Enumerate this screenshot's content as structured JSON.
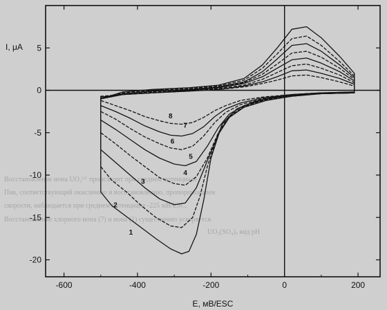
{
  "chart_data": {
    "type": "line",
    "xlabel": "E, мВ/ESC",
    "ylabel": "I, μA",
    "xlim": [
      -650,
      260
    ],
    "ylim": [
      -22,
      10
    ],
    "xticks": [
      -600,
      -400,
      -200,
      0,
      200
    ],
    "xtick_labels": [
      "-600",
      "-400",
      "-200",
      "0",
      "200"
    ],
    "yticks": [
      5,
      0,
      -5,
      -10,
      -15,
      -20
    ],
    "ytick_labels": [
      "5",
      "0",
      "-5",
      "-10",
      "-15",
      "-20"
    ],
    "grid": false,
    "series": [
      {
        "label": "1",
        "cathodic": [
          [
            -500,
            -12.0
          ],
          [
            -470,
            -13.6
          ],
          [
            -430,
            -14.9
          ],
          [
            -390,
            -16.2
          ],
          [
            -350,
            -17.5
          ],
          [
            -310,
            -18.7
          ],
          [
            -280,
            -19.3
          ],
          [
            -260,
            -19.0
          ],
          [
            -240,
            -17.0
          ],
          [
            -220,
            -13.0
          ],
          [
            -200,
            -8.0
          ],
          [
            -170,
            -4.0
          ],
          [
            -130,
            -2.2
          ],
          [
            -80,
            -1.3
          ],
          [
            -30,
            -0.8
          ],
          [
            20,
            -0.5
          ],
          [
            100,
            -0.3
          ],
          [
            190,
            -0.2
          ]
        ],
        "anodic": [
          [
            190,
            2.0
          ],
          [
            150,
            4.0
          ],
          [
            100,
            6.2
          ],
          [
            60,
            7.5
          ],
          [
            20,
            7.2
          ],
          [
            -20,
            5.0
          ],
          [
            -60,
            3.0
          ],
          [
            -110,
            1.4
          ],
          [
            -180,
            0.6
          ],
          [
            -260,
            0.3
          ],
          [
            -360,
            0.1
          ],
          [
            -440,
            -0.2
          ],
          [
            -500,
            -1.0
          ]
        ]
      },
      {
        "label": "2",
        "cathodic": [
          [
            -500,
            -9.0
          ],
          [
            -470,
            -10.6
          ],
          [
            -430,
            -12.0
          ],
          [
            -390,
            -13.6
          ],
          [
            -350,
            -15.0
          ],
          [
            -310,
            -16.0
          ],
          [
            -280,
            -16.2
          ],
          [
            -250,
            -15.0
          ],
          [
            -230,
            -12.5
          ],
          [
            -210,
            -9.0
          ],
          [
            -180,
            -5.0
          ],
          [
            -150,
            -3.0
          ],
          [
            -100,
            -1.7
          ],
          [
            -40,
            -1.0
          ],
          [
            20,
            -0.6
          ],
          [
            100,
            -0.4
          ],
          [
            190,
            -0.3
          ]
        ],
        "anodic": [
          [
            190,
            1.7
          ],
          [
            150,
            3.4
          ],
          [
            100,
            5.3
          ],
          [
            60,
            6.4
          ],
          [
            20,
            6.1
          ],
          [
            -20,
            4.3
          ],
          [
            -60,
            2.6
          ],
          [
            -110,
            1.2
          ],
          [
            -180,
            0.5
          ],
          [
            -260,
            0.2
          ],
          [
            -360,
            0.0
          ],
          [
            -440,
            -0.3
          ],
          [
            -500,
            -1.0
          ]
        ]
      },
      {
        "label": "3",
        "cathodic": [
          [
            -500,
            -7.0
          ],
          [
            -460,
            -8.5
          ],
          [
            -420,
            -10.0
          ],
          [
            -380,
            -11.5
          ],
          [
            -340,
            -12.8
          ],
          [
            -300,
            -13.5
          ],
          [
            -270,
            -13.3
          ],
          [
            -240,
            -11.5
          ],
          [
            -210,
            -8.3
          ],
          [
            -180,
            -5.2
          ],
          [
            -150,
            -3.2
          ],
          [
            -110,
            -2.0
          ],
          [
            -50,
            -1.2
          ],
          [
            20,
            -0.7
          ],
          [
            100,
            -0.4
          ],
          [
            190,
            -0.3
          ]
        ],
        "anodic": [
          [
            190,
            1.5
          ],
          [
            150,
            3.0
          ],
          [
            100,
            4.6
          ],
          [
            60,
            5.5
          ],
          [
            20,
            5.3
          ],
          [
            -20,
            3.7
          ],
          [
            -60,
            2.2
          ],
          [
            -110,
            1.0
          ],
          [
            -180,
            0.4
          ],
          [
            -260,
            0.1
          ],
          [
            -360,
            -0.1
          ],
          [
            -440,
            -0.4
          ],
          [
            -500,
            -1.0
          ]
        ]
      },
      {
        "label": "4",
        "cathodic": [
          [
            -500,
            -5.0
          ],
          [
            -460,
            -6.3
          ],
          [
            -420,
            -7.7
          ],
          [
            -380,
            -9.0
          ],
          [
            -340,
            -10.3
          ],
          [
            -300,
            -11.0
          ],
          [
            -270,
            -11.2
          ],
          [
            -240,
            -10.2
          ],
          [
            -210,
            -8.0
          ],
          [
            -180,
            -5.0
          ],
          [
            -150,
            -3.1
          ],
          [
            -110,
            -1.9
          ],
          [
            -50,
            -1.1
          ],
          [
            20,
            -0.7
          ],
          [
            100,
            -0.4
          ],
          [
            190,
            -0.3
          ]
        ],
        "anodic": [
          [
            190,
            1.3
          ],
          [
            150,
            2.6
          ],
          [
            100,
            3.9
          ],
          [
            60,
            4.6
          ],
          [
            20,
            4.4
          ],
          [
            -20,
            3.1
          ],
          [
            -60,
            1.9
          ],
          [
            -110,
            0.9
          ],
          [
            -180,
            0.3
          ],
          [
            -260,
            0.1
          ],
          [
            -360,
            -0.2
          ],
          [
            -440,
            -0.5
          ],
          [
            -500,
            -1.0
          ]
        ]
      },
      {
        "label": "5",
        "cathodic": [
          [
            -500,
            -3.5
          ],
          [
            -460,
            -4.6
          ],
          [
            -420,
            -5.8
          ],
          [
            -380,
            -7.0
          ],
          [
            -340,
            -8.0
          ],
          [
            -300,
            -8.7
          ],
          [
            -270,
            -8.9
          ],
          [
            -240,
            -8.4
          ],
          [
            -210,
            -6.6
          ],
          [
            -180,
            -4.4
          ],
          [
            -150,
            -2.8
          ],
          [
            -110,
            -1.8
          ],
          [
            -50,
            -1.0
          ],
          [
            20,
            -0.6
          ],
          [
            100,
            -0.4
          ],
          [
            190,
            -0.3
          ]
        ],
        "anodic": [
          [
            190,
            1.1
          ],
          [
            150,
            2.2
          ],
          [
            100,
            3.2
          ],
          [
            60,
            3.8
          ],
          [
            20,
            3.6
          ],
          [
            -20,
            2.6
          ],
          [
            -60,
            1.6
          ],
          [
            -110,
            0.8
          ],
          [
            -180,
            0.3
          ],
          [
            -260,
            0.0
          ],
          [
            -360,
            -0.3
          ],
          [
            -440,
            -0.5
          ],
          [
            -500,
            -1.0
          ]
        ]
      },
      {
        "label": "6",
        "cathodic": [
          [
            -500,
            -2.5
          ],
          [
            -460,
            -3.4
          ],
          [
            -420,
            -4.5
          ],
          [
            -380,
            -5.5
          ],
          [
            -340,
            -6.3
          ],
          [
            -310,
            -6.8
          ],
          [
            -280,
            -7.0
          ],
          [
            -250,
            -6.6
          ],
          [
            -220,
            -5.4
          ],
          [
            -190,
            -3.8
          ],
          [
            -160,
            -2.6
          ],
          [
            -120,
            -1.7
          ],
          [
            -60,
            -1.0
          ],
          [
            20,
            -0.6
          ],
          [
            100,
            -0.4
          ],
          [
            190,
            -0.3
          ]
        ],
        "anodic": [
          [
            190,
            0.9
          ],
          [
            150,
            1.8
          ],
          [
            100,
            2.6
          ],
          [
            60,
            3.1
          ],
          [
            20,
            2.9
          ],
          [
            -20,
            2.1
          ],
          [
            -60,
            1.3
          ],
          [
            -110,
            0.6
          ],
          [
            -180,
            0.2
          ],
          [
            -260,
            0.0
          ],
          [
            -360,
            -0.3
          ],
          [
            -440,
            -0.5
          ],
          [
            -500,
            -0.9
          ]
        ]
      },
      {
        "label": "7",
        "cathodic": [
          [
            -500,
            -1.8
          ],
          [
            -460,
            -2.5
          ],
          [
            -420,
            -3.3
          ],
          [
            -380,
            -4.2
          ],
          [
            -340,
            -4.9
          ],
          [
            -310,
            -5.3
          ],
          [
            -280,
            -5.4
          ],
          [
            -250,
            -5.1
          ],
          [
            -220,
            -4.3
          ],
          [
            -190,
            -3.1
          ],
          [
            -160,
            -2.2
          ],
          [
            -120,
            -1.5
          ],
          [
            -60,
            -0.9
          ],
          [
            20,
            -0.5
          ],
          [
            100,
            -0.3
          ],
          [
            190,
            -0.3
          ]
        ],
        "anodic": [
          [
            190,
            0.7
          ],
          [
            150,
            1.4
          ],
          [
            100,
            2.0
          ],
          [
            60,
            2.4
          ],
          [
            20,
            2.3
          ],
          [
            -20,
            1.6
          ],
          [
            -60,
            1.0
          ],
          [
            -110,
            0.5
          ],
          [
            -180,
            0.1
          ],
          [
            -260,
            -0.1
          ],
          [
            -360,
            -0.3
          ],
          [
            -440,
            -0.5
          ],
          [
            -500,
            -0.8
          ]
        ]
      },
      {
        "label": "8",
        "cathodic": [
          [
            -500,
            -1.2
          ],
          [
            -460,
            -1.8
          ],
          [
            -420,
            -2.4
          ],
          [
            -380,
            -3.1
          ],
          [
            -340,
            -3.6
          ],
          [
            -310,
            -3.9
          ],
          [
            -280,
            -4.0
          ],
          [
            -250,
            -3.8
          ],
          [
            -220,
            -3.2
          ],
          [
            -190,
            -2.4
          ],
          [
            -160,
            -1.8
          ],
          [
            -120,
            -1.2
          ],
          [
            -60,
            -0.8
          ],
          [
            20,
            -0.5
          ],
          [
            100,
            -0.3
          ],
          [
            190,
            -0.2
          ]
        ],
        "anodic": [
          [
            190,
            0.5
          ],
          [
            150,
            1.0
          ],
          [
            100,
            1.5
          ],
          [
            60,
            1.8
          ],
          [
            20,
            1.7
          ],
          [
            -20,
            1.2
          ],
          [
            -60,
            0.8
          ],
          [
            -110,
            0.4
          ],
          [
            -180,
            0.1
          ],
          [
            -260,
            -0.1
          ],
          [
            -360,
            -0.3
          ],
          [
            -440,
            -0.5
          ],
          [
            -500,
            -0.7
          ]
        ]
      }
    ],
    "curve_labels": [
      {
        "text": "1",
        "at": [
          -418,
          -17.0
        ]
      },
      {
        "text": "2",
        "at": [
          -460,
          -13.8
        ]
      },
      {
        "text": "3",
        "at": [
          -385,
          -11.0
        ]
      },
      {
        "text": "4",
        "at": [
          -270,
          -10.0
        ]
      },
      {
        "text": "5",
        "at": [
          -255,
          -8.1
        ]
      },
      {
        "text": "6",
        "at": [
          -305,
          -6.3
        ]
      },
      {
        "text": "7",
        "at": [
          -270,
          -4.4
        ]
      },
      {
        "text": "8",
        "at": [
          -310,
          -3.3
        ]
      }
    ]
  },
  "background_text": [
    "Восстановление иона UO₂²⁺ происходит при среднем потенциале",
    "Пик, соответствующий окислению и восстановлению, пропорционален",
    "скорости, наблюдается при среднем потенциале -225 мВ/ESC.",
    "Восстановление хлорного иона (7) и иона (1) существенно ускоряется",
    "UO₂(SO₄)ₓ вид pH"
  ],
  "colors": {
    "background": "#cfcfcf",
    "line": "#141414",
    "axis": "#101010"
  }
}
